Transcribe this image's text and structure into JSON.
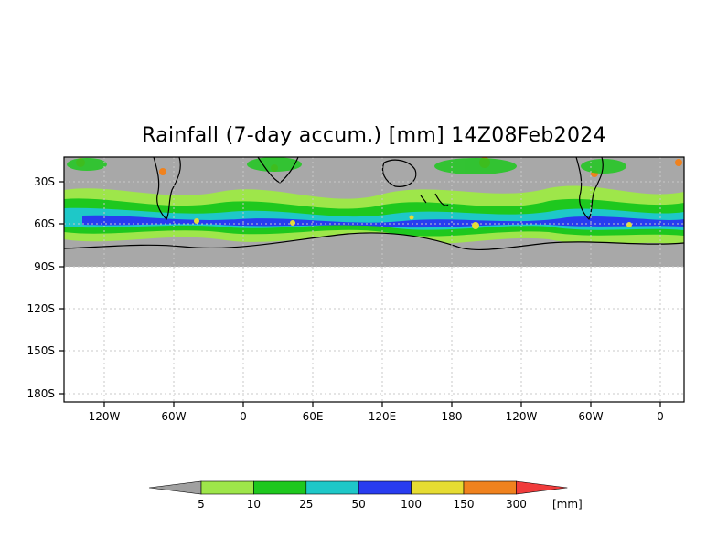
{
  "title": "Rainfall (7-day accum.) [mm] 14Z08Feb2024",
  "map": {
    "y_ticks": [
      "30S",
      "60S",
      "90S",
      "120S",
      "150S",
      "180S"
    ],
    "x_ticks": [
      "120W",
      "60W",
      "0",
      "60E",
      "120E",
      "180",
      "120W",
      "60W",
      "0"
    ]
  },
  "legend": {
    "unit": "[mm]",
    "labels": [
      "5",
      "10",
      "25",
      "50",
      "100",
      "150",
      "300"
    ],
    "colors": [
      "#a0a0a0",
      "#9ee64a",
      "#1ec81e",
      "#1ec8c8",
      "#283cf0",
      "#e6dc32",
      "#f0821e",
      "#f03c3c"
    ]
  },
  "palette": {
    "land_ocean_dry": "#a8a8a8",
    "antarctica": "#a8a8a8"
  }
}
